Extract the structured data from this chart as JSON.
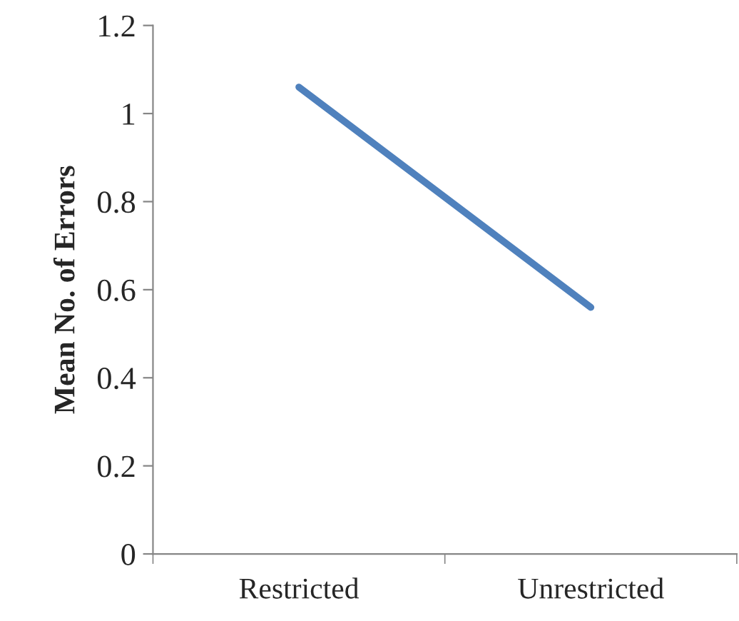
{
  "chart_data": {
    "type": "line",
    "ylabel": "Mean No. of Errors",
    "categories": [
      "Restricted",
      "Unrestricted"
    ],
    "series": [
      {
        "color": "#4f81bd",
        "values": [
          1.06,
          0.56
        ]
      }
    ],
    "ylim": [
      0,
      1.2
    ],
    "yticks": [
      0,
      0.2,
      0.4,
      0.6,
      0.8,
      1,
      1.2
    ],
    "grid": false,
    "legend": false,
    "marker": "none",
    "line_style": "solid"
  }
}
